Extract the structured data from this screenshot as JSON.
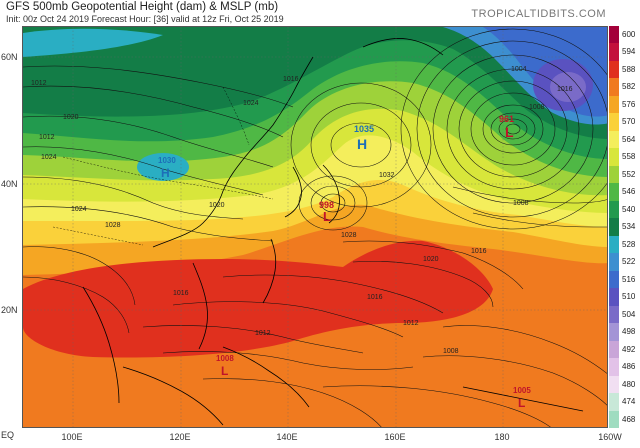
{
  "header": {
    "title": "GFS 500mb Geopotential Height (dam) & MSLP (mb)",
    "subtitle": "Init: 00z Oct 24 2019   Forecast Hour: [36]   valid at 12z Fri, Oct 25 2019",
    "brand": "TROPICALTIDBITS.COM"
  },
  "axes": {
    "lat_labels": [
      "60N",
      "40N",
      "20N",
      "EQ"
    ],
    "lon_labels": [
      "100E",
      "120E",
      "140E",
      "160E",
      "180",
      "160W"
    ]
  },
  "legend": {
    "levels": [
      {
        "value": "600",
        "color": "#a3003a"
      },
      {
        "value": "594",
        "color": "#c3113c"
      },
      {
        "value": "588",
        "color": "#e0301e"
      },
      {
        "value": "582",
        "color": "#f07a1f"
      },
      {
        "value": "576",
        "color": "#f5a623"
      },
      {
        "value": "570",
        "color": "#fad13a"
      },
      {
        "value": "564",
        "color": "#f4ee5c"
      },
      {
        "value": "558",
        "color": "#d8e63b"
      },
      {
        "value": "552",
        "color": "#9ed23a"
      },
      {
        "value": "546",
        "color": "#4fb845"
      },
      {
        "value": "540",
        "color": "#229a4e"
      },
      {
        "value": "534",
        "color": "#137d47"
      },
      {
        "value": "528",
        "color": "#2aaec3"
      },
      {
        "value": "522",
        "color": "#3d8fd0"
      },
      {
        "value": "516",
        "color": "#3c6bcc"
      },
      {
        "value": "510",
        "color": "#5a52c0"
      },
      {
        "value": "504",
        "color": "#7a6bc8"
      },
      {
        "value": "498",
        "color": "#a394d6"
      },
      {
        "value": "492",
        "color": "#c9a5d8"
      },
      {
        "value": "486",
        "color": "#e2c2e8"
      },
      {
        "value": "480",
        "color": "#f1dff2"
      },
      {
        "value": "474",
        "color": "#c8e8d8"
      },
      {
        "value": "468",
        "color": "#9fdcc0"
      }
    ]
  },
  "pressure_centers": [
    {
      "type": "H",
      "value": "1035",
      "color": "#1d6fb8"
    },
    {
      "type": "L",
      "value": "961",
      "color": "#c0142a"
    },
    {
      "type": "L",
      "value": "998",
      "color": "#c0142a"
    },
    {
      "type": "L",
      "value": "1008",
      "color": "#c0142a"
    },
    {
      "type": "L",
      "value": "1005",
      "color": "#c0142a"
    },
    {
      "type": "H",
      "value": "1030",
      "color": "#1d6fb8"
    }
  ],
  "isobar_labels": [
    "1016",
    "1024",
    "1032",
    "1012",
    "1020",
    "1028",
    "1016",
    "1012",
    "1020",
    "1008",
    "1016",
    "1004",
    "1012",
    "1024",
    "1008",
    "1016",
    "1020",
    "1024",
    "1028",
    "1016",
    "1012",
    "1008"
  ]
}
